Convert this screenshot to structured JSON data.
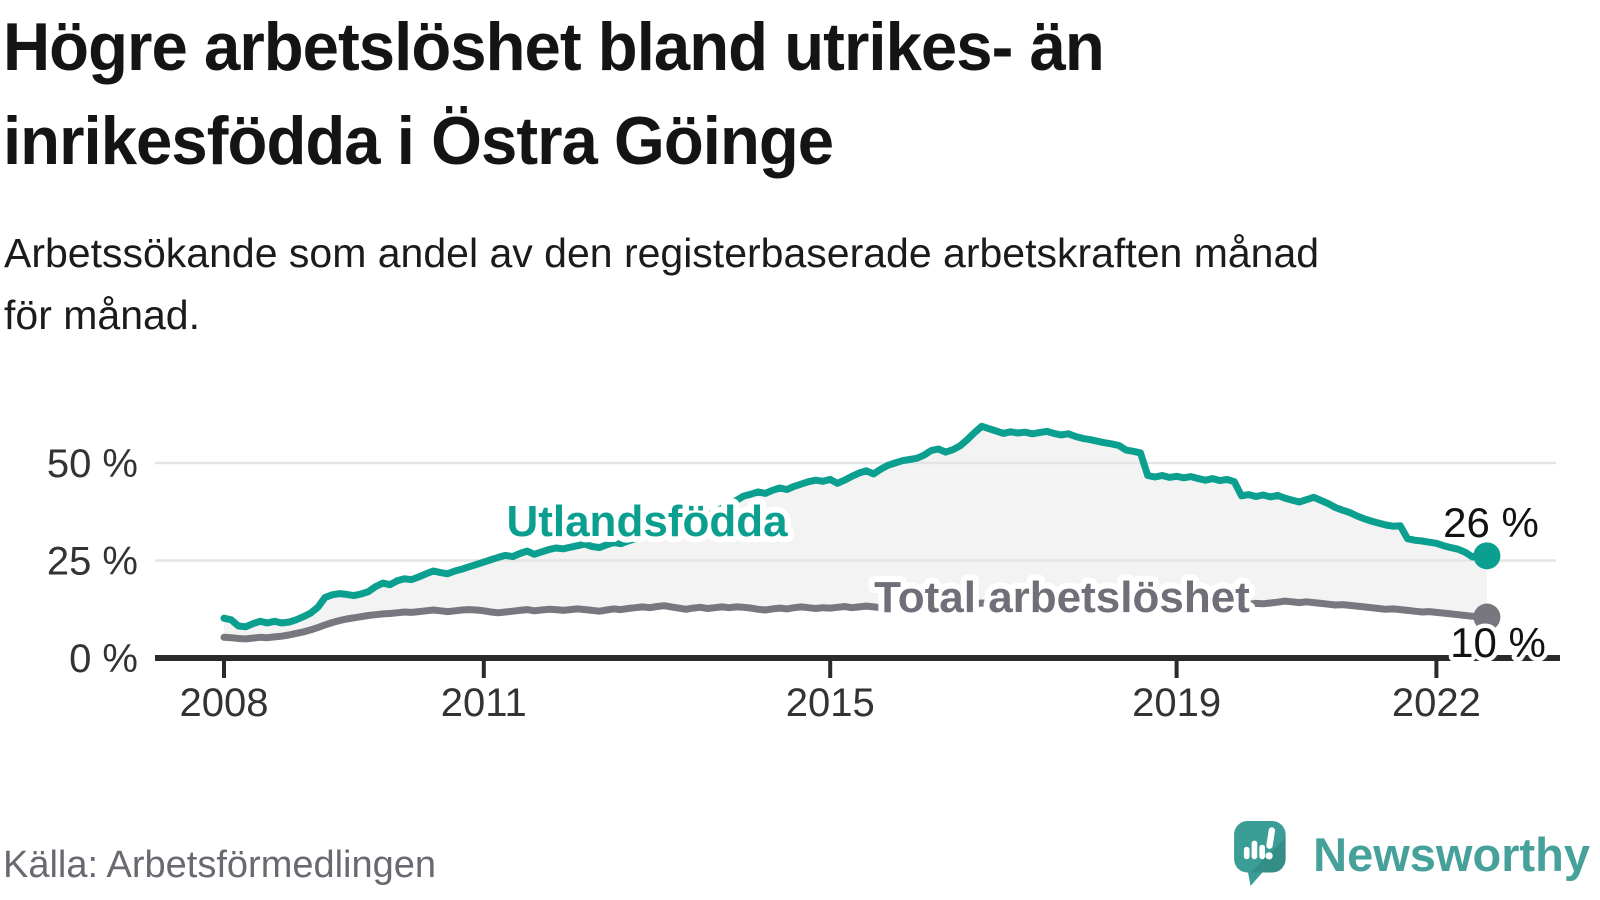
{
  "header": {
    "title_line1": "Högre arbetslöshet bland utrikes- än",
    "title_line2": "inrikesfödda i Östra Göinge",
    "subtitle_line1": "Arbetssökande som andel av den registerbaserade arbetskraften månad",
    "subtitle_line2": "för månad."
  },
  "footer": {
    "source": "Källa: Arbetsförmedlingen",
    "brand": "Newsworthy"
  },
  "colors": {
    "accent_teal": "#0b9f90",
    "line_gray": "#77777f",
    "fill_between": "#f3f3f3",
    "gridline": "#e4e4e4",
    "axis": "#2b2b2b",
    "logo_teal": "#3a9d96",
    "brand_text": "#47a19b"
  },
  "chart_data": {
    "type": "line",
    "title": "Högre arbetslöshet bland utrikes- än inrikesfödda i Östra Göinge",
    "subtitle": "Arbetssökande som andel av den registerbaserade arbetskraften månad för månad.",
    "x_start_year": 2008,
    "x_step_months": 1,
    "x_tick_years": [
      2008,
      2011,
      2015,
      2019,
      2022
    ],
    "x_tick_labels": [
      "2008",
      "2011",
      "2015",
      "2019",
      "2022"
    ],
    "y_ticks": [
      {
        "value": 0,
        "label": "0 %"
      },
      {
        "value": 25,
        "label": "25 %"
      },
      {
        "value": 50,
        "label": "50 %"
      }
    ],
    "ylim": [
      0,
      65
    ],
    "grid": true,
    "legend_position": "inline-labels",
    "series": [
      {
        "name": "Utlandsfödda",
        "color": "#0b9f90",
        "end_label": "26 %",
        "end_value": 26,
        "values": [
          10.2,
          9.8,
          8.2,
          8.0,
          8.8,
          9.4,
          9.0,
          9.4,
          9.0,
          9.2,
          9.8,
          10.6,
          11.5,
          13.0,
          15.5,
          16.2,
          16.5,
          16.3,
          16.0,
          16.4,
          17.0,
          18.3,
          19.2,
          18.8,
          19.8,
          20.3,
          20.1,
          20.8,
          21.6,
          22.3,
          21.9,
          21.6,
          22.3,
          22.8,
          23.4,
          24.0,
          24.6,
          25.2,
          25.8,
          26.3,
          26.0,
          26.8,
          27.4,
          26.6,
          27.2,
          27.8,
          28.2,
          28.0,
          28.4,
          28.8,
          29.2,
          28.6,
          28.3,
          29.0,
          29.6,
          29.3,
          30.0,
          30.6,
          31.2,
          31.0,
          31.6,
          32.4,
          33.0,
          33.8,
          34.2,
          35.0,
          35.8,
          36.6,
          37.4,
          38.4,
          39.4,
          40.4,
          41.5,
          42.0,
          42.6,
          42.2,
          43.0,
          43.6,
          43.2,
          44.0,
          44.6,
          45.2,
          45.6,
          45.3,
          45.8,
          44.8,
          45.6,
          46.6,
          47.4,
          48.0,
          47.2,
          48.4,
          49.4,
          50.0,
          50.6,
          50.9,
          51.2,
          52.0,
          53.2,
          53.6,
          52.8,
          53.4,
          54.4,
          56.0,
          57.8,
          59.4,
          58.8,
          58.2,
          57.6,
          58.0,
          57.7,
          57.9,
          57.5,
          57.8,
          58.1,
          57.6,
          57.2,
          57.5,
          56.8,
          56.3,
          56.0,
          55.6,
          55.2,
          54.9,
          54.5,
          53.3,
          53.0,
          52.6,
          46.8,
          46.4,
          46.8,
          46.3,
          46.6,
          46.2,
          46.5,
          46.0,
          45.6,
          46.0,
          45.5,
          45.8,
          45.2,
          41.6,
          41.9,
          41.4,
          41.8,
          41.3,
          41.7,
          41.0,
          40.5,
          40.0,
          40.6,
          41.2,
          40.4,
          39.6,
          38.6,
          37.9,
          37.3,
          36.4,
          35.7,
          35.1,
          34.6,
          34.1,
          33.8,
          33.9,
          30.6,
          30.2,
          30.0,
          29.7,
          29.4,
          28.8,
          28.3,
          27.9,
          27.1,
          25.9,
          26.7,
          26.2
        ]
      },
      {
        "name": "Total arbetslöshet",
        "color": "#77777f",
        "end_label": "10 %",
        "end_value": 10,
        "values": [
          5.3,
          5.2,
          5.0,
          4.9,
          5.1,
          5.3,
          5.2,
          5.4,
          5.6,
          5.9,
          6.3,
          6.7,
          7.2,
          7.8,
          8.5,
          9.1,
          9.6,
          10.0,
          10.3,
          10.6,
          10.9,
          11.1,
          11.3,
          11.4,
          11.6,
          11.8,
          11.7,
          11.9,
          12.1,
          12.3,
          12.1,
          11.9,
          12.1,
          12.3,
          12.4,
          12.3,
          12.1,
          11.8,
          11.6,
          11.8,
          12.0,
          12.2,
          12.4,
          12.1,
          12.3,
          12.5,
          12.4,
          12.2,
          12.4,
          12.6,
          12.4,
          12.2,
          12.0,
          12.3,
          12.6,
          12.4,
          12.7,
          12.9,
          13.1,
          12.9,
          13.2,
          13.4,
          13.1,
          12.8,
          12.5,
          12.8,
          13.0,
          12.7,
          12.9,
          13.1,
          12.9,
          13.1,
          13.0,
          12.8,
          12.5,
          12.3,
          12.6,
          12.8,
          12.6,
          12.9,
          13.1,
          12.9,
          12.7,
          12.9,
          12.8,
          13.0,
          13.2,
          12.9,
          13.1,
          13.3,
          13.1,
          12.9,
          13.2,
          13.4,
          13.2,
          13.4,
          13.3,
          13.5,
          13.7,
          13.5,
          13.3,
          13.6,
          13.8,
          13.6,
          13.9,
          14.1,
          13.9,
          13.7,
          13.8,
          14.0,
          13.8,
          13.6,
          13.4,
          13.7,
          13.9,
          13.7,
          13.5,
          13.8,
          13.6,
          13.4,
          13.5,
          13.3,
          13.1,
          13.3,
          13.5,
          13.3,
          13.1,
          12.9,
          13.1,
          13.3,
          13.5,
          13.4,
          13.3,
          13.5,
          13.3,
          13.1,
          13.3,
          13.5,
          13.3,
          13.5,
          13.7,
          13.6,
          13.8,
          14.0,
          13.9,
          14.1,
          14.3,
          14.6,
          14.4,
          14.2,
          14.4,
          14.2,
          14.0,
          13.8,
          13.6,
          13.7,
          13.5,
          13.3,
          13.1,
          12.9,
          12.7,
          12.5,
          12.6,
          12.4,
          12.2,
          12.0,
          11.8,
          11.9,
          11.7,
          11.5,
          11.3,
          11.1,
          10.9,
          10.7,
          10.6,
          10.5
        ]
      }
    ]
  }
}
